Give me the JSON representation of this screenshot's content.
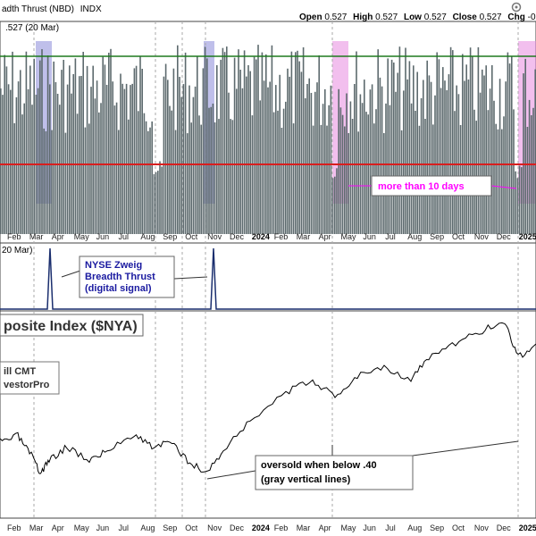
{
  "header": {
    "title": "adth Thrust (NBD)",
    "exchange": "INDX",
    "ohlc": {
      "open_label": "Open",
      "open": "0.527",
      "high_label": "High",
      "high": "0.527",
      "low_label": "Low",
      "low": "0.527",
      "close_label": "Close",
      "close": "0.527",
      "chg_label": "Chg",
      "chg": "-0"
    },
    "value_readout": ".527 (20 Mar)"
  },
  "signal_panel": {
    "readout": "20 Mar)"
  },
  "price_panel": {
    "title": "posite Index ($NYA)",
    "credit_line1": "ill CMT",
    "credit_line2": "vestorPro"
  },
  "annotations": {
    "more_than": "more than 10 days",
    "nyse_line1": "NYSE Zweig",
    "nyse_line2": "Breadth Thrust",
    "nyse_line3": "(digital signal)",
    "oversold_line1": "oversold when below .40",
    "oversold_line2": "(gray vertical lines)"
  },
  "axis_months": [
    "Feb",
    "Mar",
    "Apr",
    "May",
    "Jun",
    "Jul",
    "Aug",
    "Sep",
    "Oct",
    "Nov",
    "Dec",
    "2024",
    "Feb",
    "Mar",
    "Apr",
    "May",
    "Jun",
    "Jul",
    "Aug",
    "Sep",
    "Oct",
    "Nov",
    "Dec",
    "2025"
  ],
  "colors": {
    "bars": "#5d6a6e",
    "upper_line": "#1e7a1e",
    "lower_line": "#d81e1e",
    "blue_band": "#8a8ad8",
    "pink_band": "#e88ae0",
    "signal": "#1a2e6e",
    "callout_blue": "#1a1aa0",
    "callout_magenta": "#ff00ff",
    "callout_black": "#000000"
  },
  "chart_data": {
    "type": "bar",
    "upper_line": 0.615,
    "lower_line": 0.4
  }
}
